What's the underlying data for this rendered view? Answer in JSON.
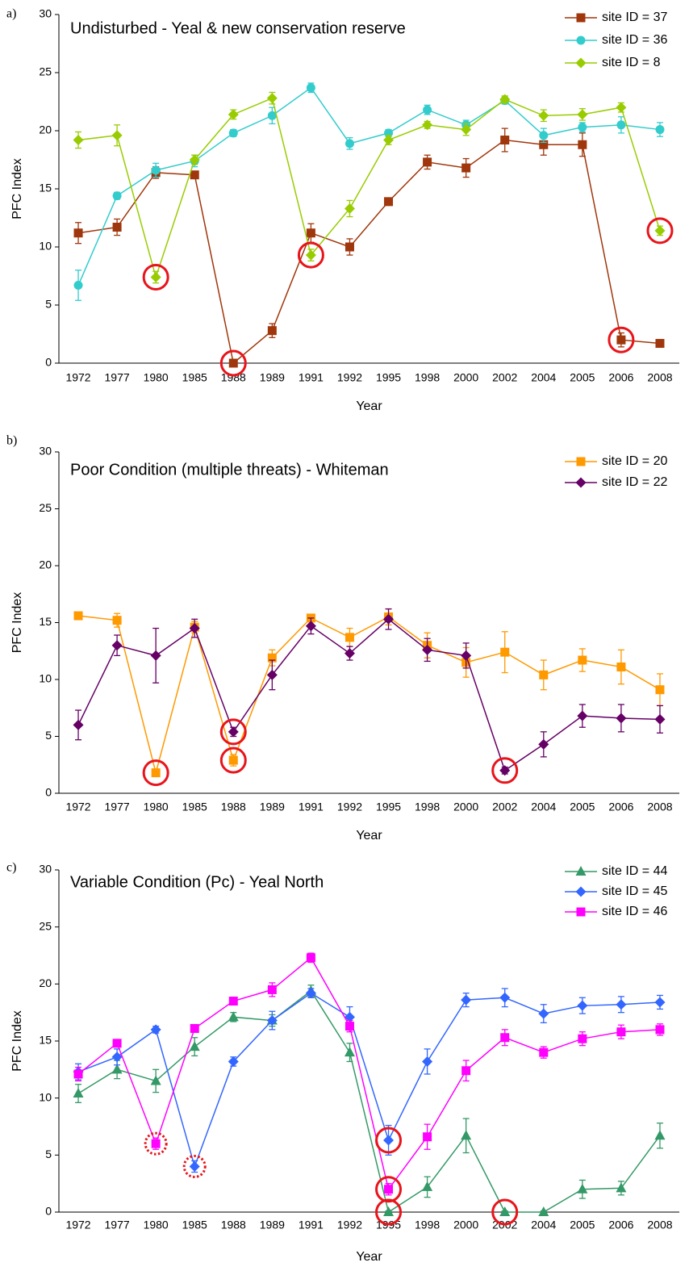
{
  "chart_data": [
    {
      "type": "line",
      "panel": "a)",
      "title": "Undisturbed - Yeal & new conservation reserve",
      "x_label": "Year",
      "y_label": "PFC Index",
      "categories": [
        "1972",
        "1977",
        "1980",
        "1985",
        "1988",
        "1989",
        "1991",
        "1992",
        "1995",
        "1998",
        "2000",
        "2002",
        "2004",
        "2005",
        "2006",
        "2008"
      ],
      "ylim": [
        0,
        30
      ],
      "yticks": [
        0,
        5,
        10,
        15,
        20,
        25,
        30
      ],
      "grid": false,
      "legend": "top-right",
      "series": [
        {
          "name": "site ID = 37",
          "color": "#a0360b",
          "marker": "square",
          "values": [
            11.2,
            11.7,
            16.4,
            16.2,
            0,
            2.8,
            11.2,
            10.0,
            13.9,
            17.3,
            16.8,
            19.2,
            18.8,
            18.8,
            2.0,
            1.7
          ],
          "errors": [
            0.9,
            0.7,
            0.5,
            0.3,
            0.2,
            0.6,
            0.8,
            0.7,
            0.3,
            0.6,
            0.8,
            1.0,
            0.9,
            1.0,
            0.6,
            0.3
          ],
          "circled": [
            4,
            14
          ]
        },
        {
          "name": "site ID = 36",
          "color": "#33cccc",
          "marker": "circle",
          "values": [
            6.7,
            14.4,
            16.6,
            17.4,
            19.8,
            21.3,
            23.7,
            18.9,
            19.8,
            21.8,
            20.5,
            22.6,
            19.6,
            20.3,
            20.5,
            20.1
          ],
          "errors": [
            1.3,
            0.3,
            0.6,
            0.5,
            0.3,
            0.7,
            0.4,
            0.5,
            0.3,
            0.4,
            0.4,
            0.3,
            0.6,
            0.4,
            0.7,
            0.6
          ]
        },
        {
          "name": "site ID = 8",
          "color": "#99cc00",
          "marker": "diamond",
          "values": [
            19.2,
            19.6,
            7.4,
            17.5,
            21.4,
            22.8,
            9.3,
            13.3,
            19.2,
            20.5,
            20.1,
            22.7,
            21.3,
            21.4,
            22.0,
            11.4
          ],
          "errors": [
            0.7,
            0.9,
            0.5,
            0.4,
            0.4,
            0.5,
            0.5,
            0.7,
            0.4,
            0.3,
            0.5,
            0.3,
            0.5,
            0.5,
            0.4,
            0.4
          ],
          "circled": [
            2,
            6,
            15
          ]
        }
      ]
    },
    {
      "type": "line",
      "panel": "b)",
      "title": "Poor Condition (multiple threats) - Whiteman",
      "x_label": "Year",
      "y_label": "PFC Index",
      "categories": [
        "1972",
        "1977",
        "1980",
        "1985",
        "1988",
        "1989",
        "1991",
        "1992",
        "1995",
        "1998",
        "2000",
        "2002",
        "2004",
        "2005",
        "2006",
        "2008"
      ],
      "ylim": [
        0,
        30
      ],
      "yticks": [
        0,
        5,
        10,
        15,
        20,
        25,
        30
      ],
      "grid": false,
      "legend": "top-right",
      "series": [
        {
          "name": "site ID = 20",
          "color": "#ff9900",
          "marker": "square",
          "values": [
            15.6,
            15.2,
            1.8,
            14.6,
            2.9,
            11.9,
            15.4,
            13.7,
            15.5,
            13.0,
            11.5,
            12.4,
            10.4,
            11.7,
            11.1,
            9.1
          ],
          "errors": [
            0.3,
            0.6,
            0.3,
            0.5,
            0.5,
            0.7,
            0.3,
            0.8,
            0.7,
            1.1,
            1.3,
            1.8,
            1.3,
            1.0,
            1.5,
            1.4
          ],
          "circled": [
            2,
            4
          ]
        },
        {
          "name": "site ID = 22",
          "color": "#660066",
          "marker": "diamond",
          "values": [
            6.0,
            13.0,
            12.1,
            14.5,
            5.4,
            10.4,
            14.7,
            12.3,
            15.3,
            12.6,
            12.1,
            2.0,
            4.3,
            6.8,
            6.6,
            6.5
          ],
          "errors": [
            1.3,
            0.9,
            2.4,
            0.8,
            0.4,
            1.3,
            0.7,
            0.6,
            0.9,
            1.0,
            1.1,
            0.3,
            1.1,
            1.0,
            1.2,
            1.2
          ],
          "circled": [
            4,
            11
          ]
        }
      ]
    },
    {
      "type": "line",
      "panel": "c)",
      "title": "Variable Condition (Pc) - Yeal North",
      "x_label": "Year",
      "y_label": "PFC Index",
      "categories": [
        "1972",
        "1977",
        "1980",
        "1985",
        "1988",
        "1989",
        "1991",
        "1992",
        "1995",
        "1998",
        "2000",
        "2002",
        "2004",
        "2005",
        "2006",
        "2008"
      ],
      "ylim": [
        0,
        30
      ],
      "yticks": [
        0,
        5,
        10,
        15,
        20,
        25,
        30
      ],
      "grid": false,
      "legend": "top-right",
      "series": [
        {
          "name": "site ID = 44",
          "color": "#339966",
          "marker": "triangle",
          "values": [
            10.4,
            12.5,
            11.5,
            14.5,
            17.1,
            16.8,
            19.4,
            14.0,
            0,
            2.2,
            6.7,
            0,
            0,
            2.0,
            2.1,
            6.7
          ],
          "errors": [
            0.8,
            0.8,
            1.0,
            0.8,
            0.4,
            0.5,
            0.5,
            0.8,
            0.1,
            0.9,
            1.5,
            0.1,
            0.1,
            0.8,
            0.6,
            1.1
          ],
          "circled": [
            8,
            11
          ]
        },
        {
          "name": "site ID = 45",
          "color": "#3366ff",
          "marker": "diamond",
          "values": [
            12.3,
            13.6,
            16.0,
            4.0,
            13.2,
            16.8,
            19.2,
            17.1,
            6.3,
            13.2,
            18.6,
            18.8,
            17.4,
            18.1,
            18.2,
            18.4
          ],
          "errors": [
            0.7,
            0.7,
            0.3,
            0.5,
            0.4,
            0.8,
            0.4,
            0.9,
            1.3,
            1.1,
            0.6,
            0.8,
            0.8,
            0.7,
            0.7,
            0.6
          ],
          "circled": [
            8
          ],
          "circled_dotted": [
            3
          ]
        },
        {
          "name": "site ID = 46",
          "color": "#ff00ff",
          "marker": "square",
          "values": [
            12.1,
            14.8,
            6.0,
            16.1,
            18.5,
            19.5,
            22.3,
            16.3,
            2.0,
            6.6,
            12.4,
            15.3,
            14.0,
            15.2,
            15.8,
            16.0
          ],
          "errors": [
            0.6,
            0.3,
            0.5,
            0.3,
            0.3,
            0.6,
            0.4,
            0.5,
            0.5,
            1.1,
            0.9,
            0.7,
            0.5,
            0.6,
            0.6,
            0.5
          ],
          "circled": [
            8
          ],
          "circled_dotted": [
            2
          ]
        }
      ]
    }
  ]
}
